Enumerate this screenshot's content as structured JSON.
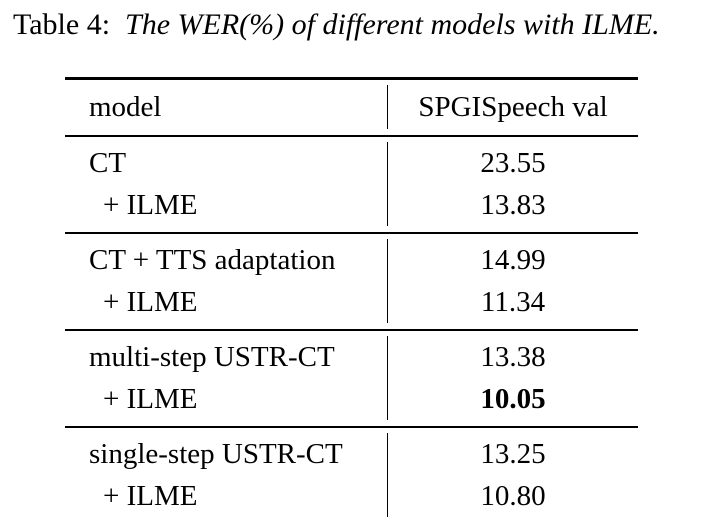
{
  "caption": {
    "label": "Table 4:",
    "text": "The WER(%) of different models with ILME."
  },
  "table": {
    "headers": {
      "model": "model",
      "value": "SPGISpeech val"
    },
    "groups": [
      {
        "rows": [
          {
            "model": "CT",
            "value": "23.55"
          },
          {
            "model": "+ ILME",
            "value": "13.83"
          }
        ]
      },
      {
        "rows": [
          {
            "model": "CT + TTS adaptation",
            "value": "14.99"
          },
          {
            "model": "+ ILME",
            "value": "11.34"
          }
        ]
      },
      {
        "rows": [
          {
            "model": "multi-step USTR-CT",
            "value": "13.38"
          },
          {
            "model": "+ ILME",
            "value": "10.05"
          }
        ]
      },
      {
        "rows": [
          {
            "model": "single-step USTR-CT",
            "value": "13.25"
          },
          {
            "model": "+ ILME",
            "value": "10.80"
          }
        ]
      }
    ]
  }
}
